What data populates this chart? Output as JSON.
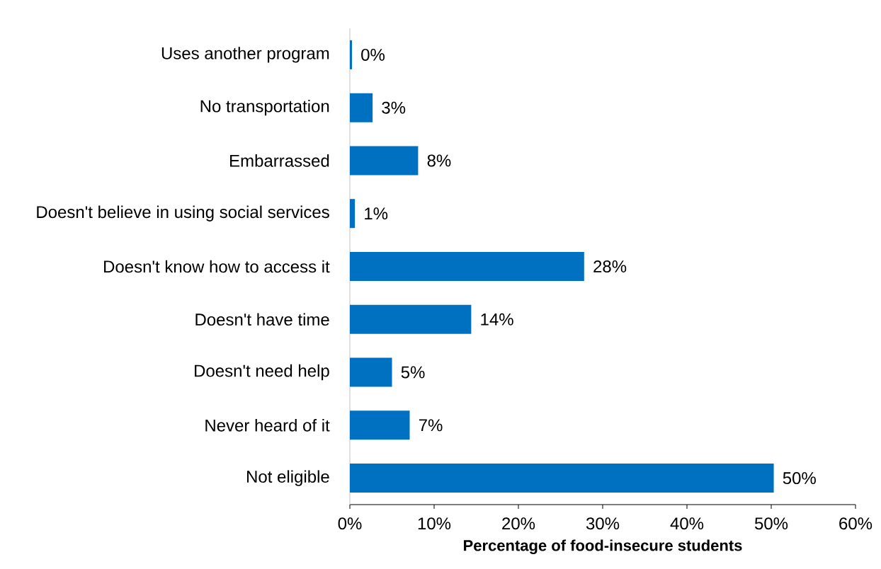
{
  "chart_data": {
    "type": "bar",
    "orientation": "horizontal",
    "categories": [
      "Uses another program",
      "No transportation",
      "Embarrassed",
      "Doesn't believe in using social services",
      "Doesn't know how to access it",
      "Doesn't have time",
      "Doesn't need help",
      "Never heard of it",
      "Not eligible"
    ],
    "values": [
      0.25,
      2.7,
      8.1,
      0.6,
      27.8,
      14.4,
      5.0,
      7.1,
      50.3
    ],
    "value_labels": [
      "0%",
      "3%",
      "8%",
      "1%",
      "28%",
      "14%",
      "5%",
      "7%",
      "50%"
    ],
    "color": "#0070c0",
    "xlabel": "Percentage of food-insecure students",
    "xlim": [
      0,
      60
    ],
    "xticks": [
      {
        "value": 0,
        "label": "0%"
      },
      {
        "value": 10,
        "label": "10%"
      },
      {
        "value": 20,
        "label": "20%"
      },
      {
        "value": 30,
        "label": "30%"
      },
      {
        "value": 40,
        "label": "40%"
      },
      {
        "value": 50,
        "label": "50%"
      },
      {
        "value": 60,
        "label": "60%"
      }
    ]
  }
}
